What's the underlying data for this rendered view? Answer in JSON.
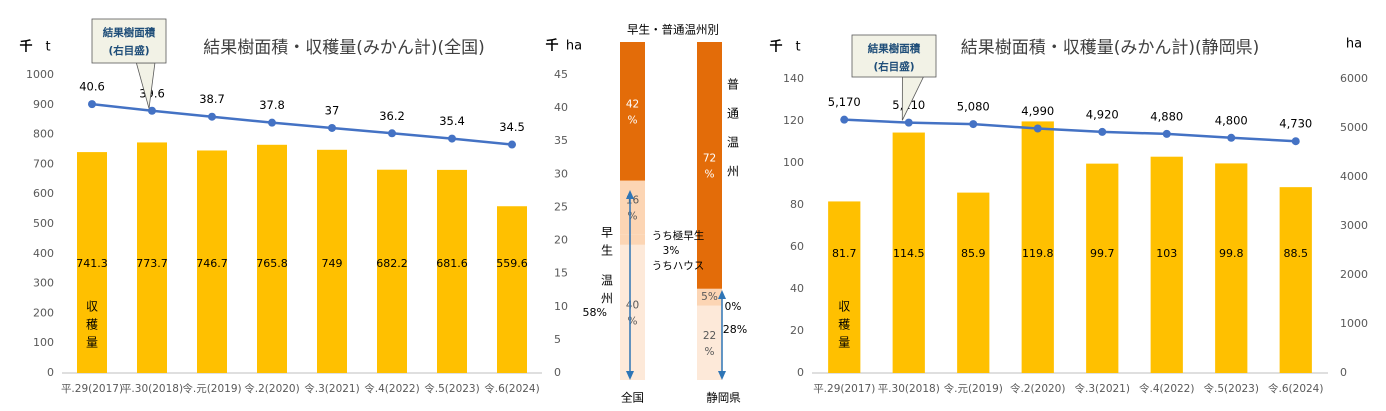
{
  "chart_data": [
    {
      "type": "bar",
      "title": "結果樹面積・収穫量(みかん計)(全国)",
      "ylabel_left": "千 t",
      "ylabel_right": "千 ha",
      "ylim": [
        0,
        1000
      ],
      "ylim_right": [
        0,
        45
      ],
      "yticks": [
        0,
        100,
        200,
        300,
        400,
        500,
        600,
        700,
        800,
        900,
        1000
      ],
      "yticks_right": [
        0,
        5,
        10,
        15,
        20,
        25,
        30,
        35,
        40,
        45
      ],
      "categories": [
        "平.29(2017)",
        "平.30(2018)",
        "令.元(2019)",
        "令.2(2020)",
        "令.3(2021)",
        "令.4(2022)",
        "令.5(2023)",
        "令.6(2024)"
      ],
      "series": [
        {
          "name": "収穫量",
          "type": "bar",
          "axis": "left",
          "values": [
            741.3,
            773.7,
            746.7,
            765.8,
            749,
            682.2,
            681.6,
            559.6
          ],
          "labels": [
            "741.3",
            "773.7",
            "746.7",
            "765.8",
            "749",
            "682.2",
            "681.6",
            "559.6"
          ]
        },
        {
          "name": "結果樹面積",
          "type": "line",
          "axis": "right",
          "values": [
            40.6,
            39.6,
            38.7,
            37.8,
            37,
            36.2,
            35.4,
            34.5
          ],
          "labels": [
            "40.6",
            "39.6",
            "38.7",
            "37.8",
            "37",
            "36.2",
            "35.4",
            "34.5"
          ]
        }
      ],
      "bar_series_label": [
        "収",
        "穫",
        "量"
      ],
      "callout": [
        "結果樹面積",
        "(右目盛)"
      ]
    },
    {
      "type": "stacked-bar",
      "title": "早生・普通温州別",
      "categories": [
        "全国",
        "静岡県"
      ],
      "series": [
        {
          "name": "普通温州",
          "values": [
            42,
            72
          ],
          "labels": [
            "42\n%",
            "72\n%"
          ]
        },
        {
          "name": "早生 (早生以外)",
          "values": [
            16,
            0
          ],
          "labels": [
            "16\n%",
            ""
          ]
        },
        {
          "name": "うち極早生",
          "values": [
            3,
            0
          ],
          "labels": [
            "3%",
            "0%"
          ]
        },
        {
          "name": "うちハウス",
          "values": [
            0,
            5
          ],
          "labels": [
            "",
            "5%"
          ]
        },
        {
          "name": "早生 (残り)",
          "values": [
            40,
            22
          ],
          "labels": [
            "40\n%",
            "22\n%"
          ]
        }
      ],
      "annotations": {
        "futsu": [
          "普",
          "通",
          "温",
          "州"
        ],
        "wase_left": [
          "早",
          "生"
        ],
        "wase_left2": [
          "温",
          "州"
        ],
        "wase_total_national": "58%",
        "wase_total_shizuoka": "28%",
        "gokuwase": "うち極早生",
        "house": "うちハウス"
      }
    },
    {
      "type": "bar",
      "title": "結果樹面積・収穫量(みかん計)(静岡県)",
      "ylabel_left": "千 t",
      "ylabel_right": "ha",
      "ylim": [
        0,
        140
      ],
      "ylim_right": [
        0,
        6000
      ],
      "yticks": [
        0,
        20,
        40,
        60,
        80,
        100,
        120,
        140
      ],
      "yticks_right": [
        0,
        1000,
        2000,
        3000,
        4000,
        5000,
        6000
      ],
      "categories": [
        "平.29(2017)",
        "平.30(2018)",
        "令.元(2019)",
        "令.2(2020)",
        "令.3(2021)",
        "令.4(2022)",
        "令.5(2023)",
        "令.6(2024)"
      ],
      "series": [
        {
          "name": "収穫量",
          "type": "bar",
          "axis": "left",
          "values": [
            81.7,
            114.5,
            85.9,
            119.8,
            99.7,
            103,
            99.8,
            88.5
          ],
          "labels": [
            "81.7",
            "114.5",
            "85.9",
            "119.8",
            "99.7",
            "103",
            "99.8",
            "88.5"
          ]
        },
        {
          "name": "結果樹面積",
          "type": "line",
          "axis": "right",
          "values": [
            5170,
            5110,
            5080,
            4990,
            4920,
            4880,
            4800,
            4730
          ],
          "labels": [
            "5,170",
            "5,110",
            "5,080",
            "4,990",
            "4,920",
            "4,880",
            "4,800",
            "4,730"
          ]
        }
      ],
      "bar_series_label": [
        "収",
        "穫",
        "量"
      ],
      "callout": [
        "結果樹面積",
        "(右目盛)"
      ]
    }
  ],
  "colors": {
    "bar": "#FFC000",
    "line": "#4472C4",
    "axis_text": "#595959",
    "futsu": "#E36C09",
    "wase": "#FCD5B4",
    "wase_light": "#FDE9D9",
    "arrow": "#2E75B6",
    "callout_fill": "#F2F2E6",
    "callout_border": "#595959",
    "callout_text": "#1F4E79"
  }
}
